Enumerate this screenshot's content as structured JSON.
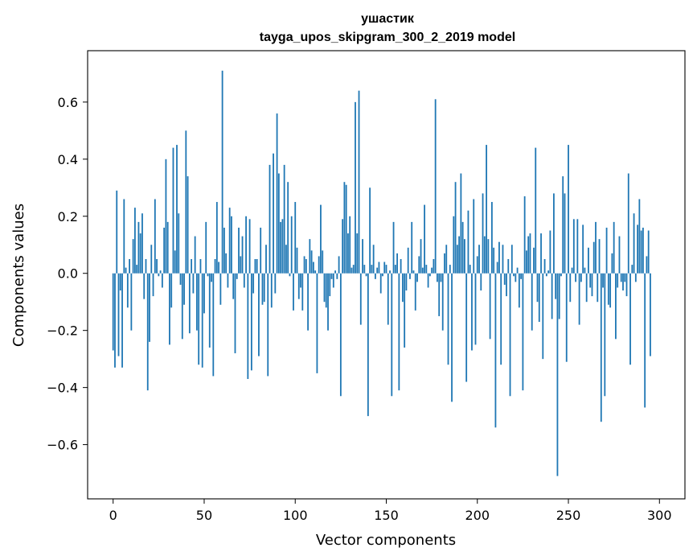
{
  "chart_data": {
    "type": "bar",
    "title": "ушастик",
    "subtitle": "tayga_upos_skipgram_300_2_2019 model",
    "xlabel": "Vector components",
    "ylabel": "Components values",
    "xlim": [
      -14,
      314
    ],
    "ylim": [
      -0.79,
      0.78
    ],
    "xticks": [
      0,
      50,
      100,
      150,
      200,
      250,
      300
    ],
    "yticks": [
      -0.6,
      -0.4,
      -0.2,
      0.0,
      0.2,
      0.4,
      0.6
    ],
    "ytick_labels": [
      "−0.6",
      "−0.4",
      "−0.2",
      "0.0",
      "0.2",
      "0.4",
      "0.6"
    ],
    "bar_color": "#1f77b4",
    "x_start": 0,
    "values": [
      -0.27,
      -0.33,
      0.29,
      -0.29,
      -0.06,
      -0.33,
      0.26,
      0.02,
      -0.12,
      0.05,
      -0.2,
      0.12,
      0.23,
      0.03,
      0.18,
      0.14,
      0.21,
      -0.09,
      0.05,
      -0.41,
      -0.24,
      0.1,
      -0.08,
      0.26,
      0.05,
      -0.01,
      0.01,
      -0.05,
      0.16,
      0.4,
      0.18,
      -0.25,
      -0.12,
      0.44,
      0.08,
      0.45,
      0.21,
      -0.04,
      -0.23,
      -0.11,
      0.5,
      0.34,
      -0.21,
      0.05,
      -0.07,
      0.13,
      -0.2,
      -0.32,
      0.05,
      -0.33,
      -0.14,
      0.18,
      -0.01,
      -0.26,
      -0.03,
      -0.36,
      0.05,
      0.25,
      0.04,
      -0.11,
      0.71,
      0.16,
      0.07,
      -0.05,
      0.23,
      0.2,
      -0.09,
      -0.28,
      -0.02,
      0.16,
      0.06,
      0.13,
      -0.05,
      0.2,
      -0.37,
      0.19,
      -0.34,
      -0.07,
      0.05,
      0.05,
      -0.29,
      0.16,
      -0.11,
      -0.1,
      0.1,
      -0.36,
      0.38,
      -0.12,
      0.42,
      -0.07,
      0.56,
      0.35,
      0.18,
      0.19,
      0.38,
      0.1,
      0.32,
      -0.01,
      0.2,
      -0.13,
      0.25,
      0.09,
      -0.09,
      -0.05,
      -0.13,
      0.06,
      0.05,
      -0.2,
      0.12,
      0.08,
      0.04,
      0.01,
      -0.35,
      0.06,
      0.24,
      0.08,
      -0.1,
      -0.12,
      -0.2,
      -0.08,
      -0.02,
      -0.05,
      0.01,
      -0.02,
      0.06,
      -0.43,
      0.19,
      0.32,
      0.31,
      0.14,
      0.2,
      0.02,
      0.03,
      0.6,
      0.14,
      0.64,
      -0.18,
      0.12,
      0.03,
      -0.01,
      -0.5,
      0.3,
      0.03,
      0.1,
      -0.02,
      0.02,
      0.04,
      -0.07,
      -0.01,
      0.04,
      0.03,
      -0.18,
      0.01,
      -0.43,
      0.18,
      0.03,
      0.07,
      -0.41,
      0.05,
      -0.1,
      -0.26,
      -0.06,
      0.09,
      -0.02,
      0.18,
      0.01,
      -0.13,
      -0.03,
      0.06,
      0.12,
      0.02,
      0.24,
      0.03,
      -0.05,
      -0.01,
      0.02,
      0.05,
      0.61,
      -0.03,
      -0.15,
      -0.03,
      -0.2,
      0.07,
      0.1,
      -0.32,
      0.03,
      -0.45,
      0.2,
      0.32,
      0.1,
      0.13,
      0.35,
      0.18,
      0.12,
      -0.38,
      0.22,
      0.03,
      -0.27,
      0.26,
      -0.25,
      0.06,
      0.1,
      -0.06,
      0.28,
      0.13,
      0.45,
      0.12,
      -0.23,
      0.25,
      0.09,
      -0.54,
      0.04,
      0.11,
      -0.32,
      0.1,
      -0.04,
      -0.08,
      0.05,
      -0.43,
      0.1,
      -0.01,
      -0.03,
      0.02,
      -0.12,
      -0.02,
      -0.41,
      0.27,
      0.08,
      0.13,
      0.14,
      -0.2,
      0.09,
      0.44,
      -0.1,
      -0.17,
      0.14,
      -0.3,
      0.05,
      -0.01,
      0.01,
      0.15,
      -0.16,
      0.28,
      -0.09,
      -0.71,
      -0.16,
      -0.01,
      0.34,
      0.28,
      -0.31,
      0.45,
      -0.1,
      0.02,
      0.19,
      -0.03,
      0.19,
      -0.18,
      -0.03,
      0.17,
      0.02,
      -0.1,
      0.09,
      -0.05,
      -0.08,
      0.11,
      0.18,
      -0.1,
      0.12,
      -0.52,
      -0.05,
      -0.43,
      0.16,
      -0.11,
      -0.12,
      0.07,
      0.18,
      -0.23,
      -0.05,
      0.13,
      -0.03,
      -0.06,
      -0.03,
      -0.08,
      0.35,
      -0.32,
      0.03,
      0.21,
      -0.03,
      0.17,
      0.26,
      0.15,
      0.16,
      -0.47,
      0.06,
      0.15,
      -0.29
    ]
  }
}
